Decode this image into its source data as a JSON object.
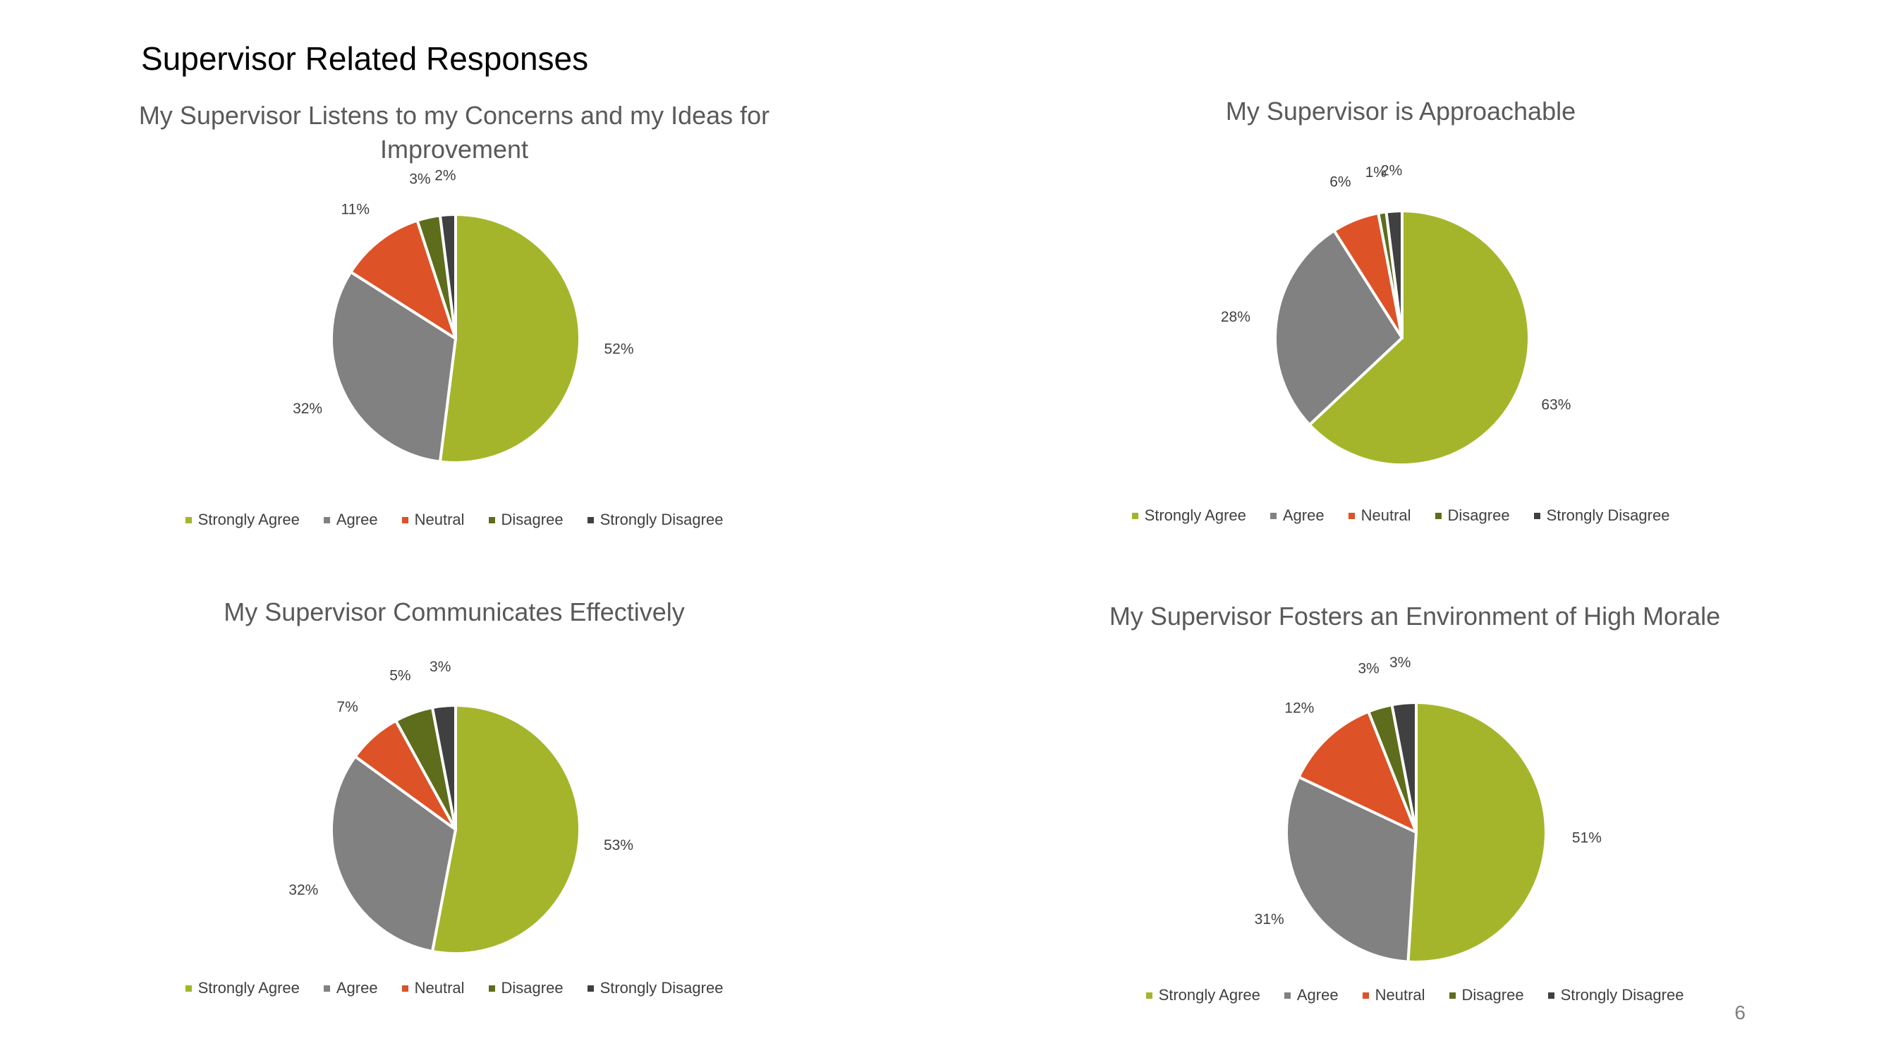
{
  "page": {
    "title": "Supervisor Related Responses",
    "page_number": "6"
  },
  "colors": {
    "Strongly Agree": "#A5B52B",
    "Agree": "#818181",
    "Neutral": "#DD5226",
    "Disagree": "#5E6D1B",
    "Strongly Disagree": "#404040"
  },
  "chart_data": [
    {
      "type": "pie",
      "title": "My Supervisor Listens to my Concerns and my Ideas for Improvement",
      "categories": [
        "Strongly Agree",
        "Agree",
        "Neutral",
        "Disagree",
        "Strongly Disagree"
      ],
      "values": [
        52,
        32,
        11,
        3,
        2
      ],
      "labels": [
        "52%",
        "32%",
        "11%",
        "3%",
        "2%"
      ],
      "legend": "bottom"
    },
    {
      "type": "pie",
      "title": "My Supervisor is Approachable",
      "categories": [
        "Strongly Agree",
        "Agree",
        "Neutral",
        "Disagree",
        "Strongly Disagree"
      ],
      "values": [
        63,
        28,
        6,
        1,
        2
      ],
      "labels": [
        "63%",
        "28%",
        "6%",
        "1%",
        "2%"
      ],
      "legend": "bottom"
    },
    {
      "type": "pie",
      "title": "My Supervisor Communicates Effectively",
      "categories": [
        "Strongly Agree",
        "Agree",
        "Neutral",
        "Disagree",
        "Strongly Disagree"
      ],
      "values": [
        53,
        32,
        7,
        5,
        3
      ],
      "labels": [
        "53%",
        "32%",
        "7%",
        "5%",
        "3%"
      ],
      "legend": "bottom"
    },
    {
      "type": "pie",
      "title": "My Supervisor Fosters an Environment of High Morale",
      "categories": [
        "Strongly Agree",
        "Agree",
        "Neutral",
        "Disagree",
        "Strongly Disagree"
      ],
      "values": [
        51,
        31,
        12,
        3,
        3
      ],
      "labels": [
        "51%",
        "31%",
        "12%",
        "3%",
        "3%"
      ],
      "legend": "bottom"
    }
  ]
}
